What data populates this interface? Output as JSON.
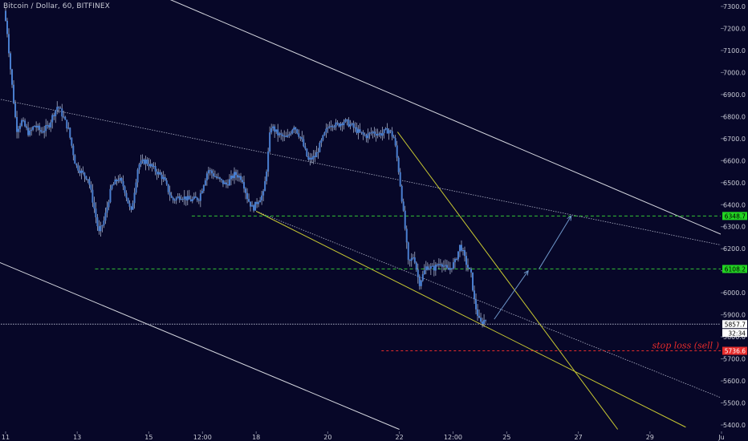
{
  "header": {
    "title": "Bitcoin / Dollar, 60, BITFINEX"
  },
  "colors": {
    "background": "#070728",
    "candle": "#4a7fd0",
    "wick": "#b8c4dc",
    "trend_white": "#d6d8e0",
    "trend_dotted": "#b0b4c8",
    "wedge_yellow": "#c8c832",
    "level_green": "#35c435",
    "stoploss_red": "#e62b2b",
    "arrow_blue": "#6d95c8",
    "price_line": "#b0b4c8"
  },
  "chart_data": {
    "type": "candlestick",
    "title": "Bitcoin / Dollar, 60, BITFINEX",
    "ylim": [
      5380,
      7330
    ],
    "y_ticks": [
      7300.0,
      7200.0,
      7100.0,
      7000.0,
      6900.0,
      6800.0,
      6700.0,
      6600.0,
      6500.0,
      6400.0,
      6300.0,
      6200.0,
      6100.0,
      6000.0,
      5900.0,
      5800.0,
      5700.0,
      5600.0,
      5500.0,
      5400.0
    ],
    "x_ticks": [
      "11",
      "13",
      "15",
      "12:00",
      "18",
      "20",
      "22",
      "12:00",
      "25",
      "27",
      "29",
      "Ju"
    ],
    "x_tick_values": [
      0,
      2,
      4,
      5.5,
      7,
      9,
      11,
      12.5,
      14,
      16,
      18,
      20
    ],
    "price_path": [
      [
        0,
        7280
      ],
      [
        0.08,
        7200
      ],
      [
        0.2,
        6980
      ],
      [
        0.35,
        6740
      ],
      [
        0.5,
        6780
      ],
      [
        0.7,
        6720
      ],
      [
        0.85,
        6760
      ],
      [
        1.05,
        6730
      ],
      [
        1.25,
        6760
      ],
      [
        1.35,
        6800
      ],
      [
        1.5,
        6850
      ],
      [
        1.65,
        6800
      ],
      [
        1.8,
        6740
      ],
      [
        2.0,
        6580
      ],
      [
        2.2,
        6540
      ],
      [
        2.35,
        6520
      ],
      [
        2.5,
        6400
      ],
      [
        2.65,
        6270
      ],
      [
        2.8,
        6330
      ],
      [
        3.0,
        6480
      ],
      [
        3.2,
        6520
      ],
      [
        3.35,
        6480
      ],
      [
        3.55,
        6360
      ],
      [
        3.75,
        6580
      ],
      [
        3.95,
        6600
      ],
      [
        4.2,
        6560
      ],
      [
        4.45,
        6520
      ],
      [
        4.7,
        6420
      ],
      [
        4.95,
        6440
      ],
      [
        5.2,
        6420
      ],
      [
        5.45,
        6430
      ],
      [
        5.7,
        6560
      ],
      [
        5.95,
        6520
      ],
      [
        6.2,
        6490
      ],
      [
        6.45,
        6540
      ],
      [
        6.65,
        6520
      ],
      [
        6.8,
        6430
      ],
      [
        6.95,
        6380
      ],
      [
        7.1,
        6420
      ],
      [
        7.25,
        6450
      ],
      [
        7.35,
        6580
      ],
      [
        7.45,
        6760
      ],
      [
        7.65,
        6720
      ],
      [
        7.9,
        6700
      ],
      [
        8.1,
        6760
      ],
      [
        8.3,
        6700
      ],
      [
        8.5,
        6600
      ],
      [
        8.7,
        6620
      ],
      [
        8.9,
        6700
      ],
      [
        9.1,
        6770
      ],
      [
        9.3,
        6760
      ],
      [
        9.5,
        6780
      ],
      [
        9.7,
        6760
      ],
      [
        9.9,
        6730
      ],
      [
        10.1,
        6710
      ],
      [
        10.3,
        6730
      ],
      [
        10.5,
        6720
      ],
      [
        10.75,
        6740
      ],
      [
        10.9,
        6700
      ],
      [
        11.0,
        6590
      ],
      [
        11.1,
        6450
      ],
      [
        11.2,
        6300
      ],
      [
        11.3,
        6130
      ],
      [
        11.45,
        6170
      ],
      [
        11.6,
        6040
      ],
      [
        11.8,
        6120
      ],
      [
        12.0,
        6110
      ],
      [
        12.2,
        6140
      ],
      [
        12.4,
        6100
      ],
      [
        12.6,
        6140
      ],
      [
        12.75,
        6220
      ],
      [
        12.9,
        6140
      ],
      [
        13.05,
        6080
      ],
      [
        13.15,
        5950
      ],
      [
        13.3,
        5860
      ],
      [
        13.45,
        5880
      ]
    ],
    "levels": [
      {
        "price": 6348.7,
        "label": "6348.7",
        "color": "green",
        "start_x": 5.2
      },
      {
        "price": 6108.2,
        "label": "6108.2",
        "color": "green",
        "start_x": 2.5
      },
      {
        "price": 5857.7,
        "label": "5857.7",
        "color": "gray",
        "start_x": -0.2
      },
      {
        "price": 5736.6,
        "label": "5736.6",
        "color": "red",
        "start_x": 10.5
      }
    ],
    "countdown_label": "32:34",
    "annotation": "stop loss (sell )",
    "trendlines": [
      {
        "style": "white",
        "from": [
          3.6,
          7400
        ],
        "to": [
          20.5,
          6230
        ]
      },
      {
        "style": "white",
        "from": [
          -0.2,
          6140
        ],
        "to": [
          11.0,
          5380
        ]
      },
      {
        "style": "dotted",
        "from": [
          -0.2,
          6880
        ],
        "to": [
          20.5,
          6200
        ]
      },
      {
        "style": "dotted",
        "from": [
          7.0,
          6370
        ],
        "to": [
          20.5,
          5490
        ]
      },
      {
        "style": "yellow",
        "from": [
          7.0,
          6370
        ],
        "to": [
          19.0,
          5390
        ]
      },
      {
        "style": "yellow",
        "from": [
          10.95,
          6730
        ],
        "to": [
          17.1,
          5380
        ]
      }
    ],
    "arrows": [
      {
        "from": [
          13.65,
          5880
        ],
        "to": [
          14.6,
          6100
        ]
      },
      {
        "from": [
          14.9,
          6108.2
        ],
        "to": [
          15.8,
          6348.7
        ]
      }
    ],
    "grid": false,
    "legend": "none",
    "price_axis": "right"
  }
}
